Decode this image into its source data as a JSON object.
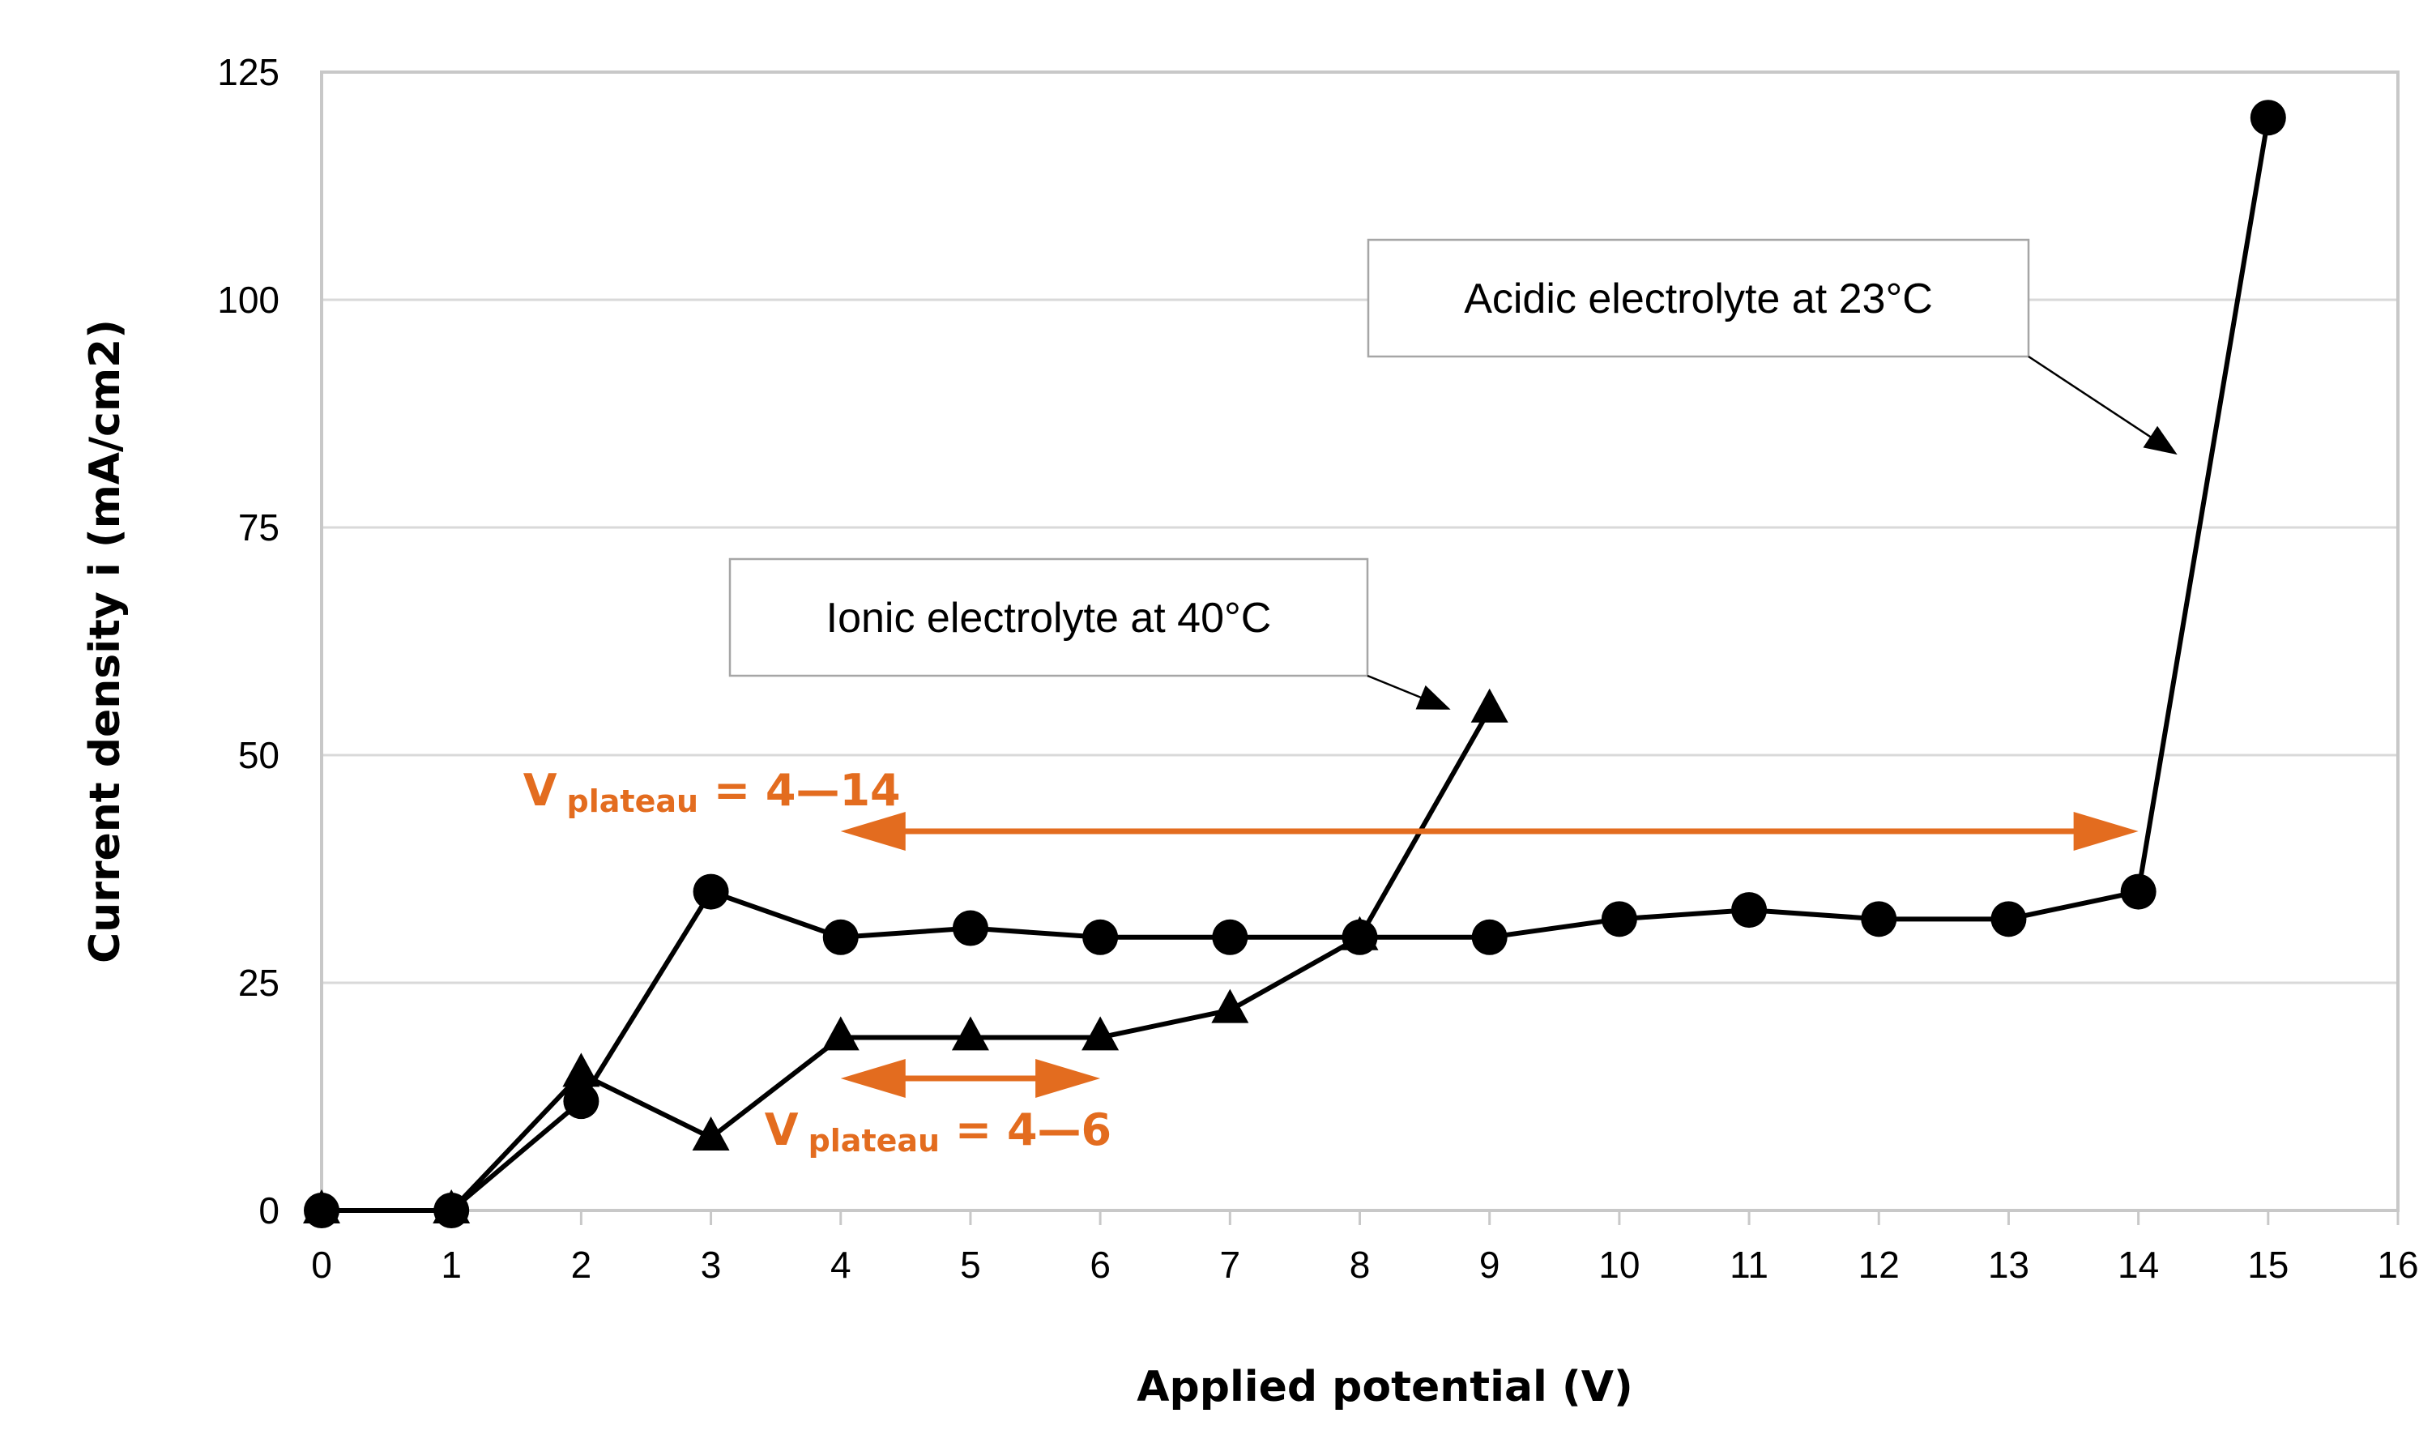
{
  "chart_data": {
    "type": "line",
    "title": "",
    "xlabel": "Applied potential (V)",
    "ylabel": "Current density i (mA/cm2)",
    "xlim": [
      0,
      16
    ],
    "ylim": [
      0,
      125
    ],
    "xticks": [
      0,
      1,
      2,
      3,
      4,
      5,
      6,
      7,
      8,
      9,
      10,
      11,
      12,
      13,
      14,
      15,
      16
    ],
    "yticks": [
      0,
      25,
      50,
      75,
      100,
      125
    ],
    "grid": true,
    "legend": "none",
    "series": [
      {
        "name": "Acidic electrolyte at 23°C",
        "marker": "circle",
        "color": "#000000",
        "x": [
          0,
          1,
          2,
          3,
          4,
          5,
          6,
          7,
          8,
          9,
          10,
          11,
          12,
          13,
          14,
          15
        ],
        "y": [
          0,
          0,
          12,
          35,
          30,
          31,
          30,
          30,
          30,
          30,
          32,
          33,
          32,
          32,
          35,
          120
        ]
      },
      {
        "name": "Ionic electrolyte at 40°C",
        "marker": "triangle",
        "color": "#000000",
        "x": [
          0,
          1,
          2,
          3,
          4,
          5,
          6,
          7,
          8,
          9
        ],
        "y": [
          0,
          0,
          15,
          8,
          19,
          19,
          19,
          22,
          30,
          55
        ]
      }
    ],
    "annotations": [
      {
        "id": "acidic",
        "text": "Acidic electrolyte at 23°C",
        "arrow_to": {
          "x": 14.3,
          "y": 83
        }
      },
      {
        "id": "ionic",
        "text": "Ionic electrolyte at 40°C",
        "arrow_to": {
          "x": 8.7,
          "y": 55
        }
      }
    ],
    "plateaus": [
      {
        "id": "acidic",
        "label_main": "V",
        "label_sub": "plateau",
        "label_rest": " = 4—6",
        "color": "#e36c1f",
        "x_range": [
          4,
          6
        ]
      },
      {
        "id": "wide",
        "label_main": "V",
        "label_sub": "plateau",
        "label_rest": " = 4—14",
        "color": "#e36c1f",
        "x_range": [
          4,
          14
        ]
      }
    ]
  }
}
